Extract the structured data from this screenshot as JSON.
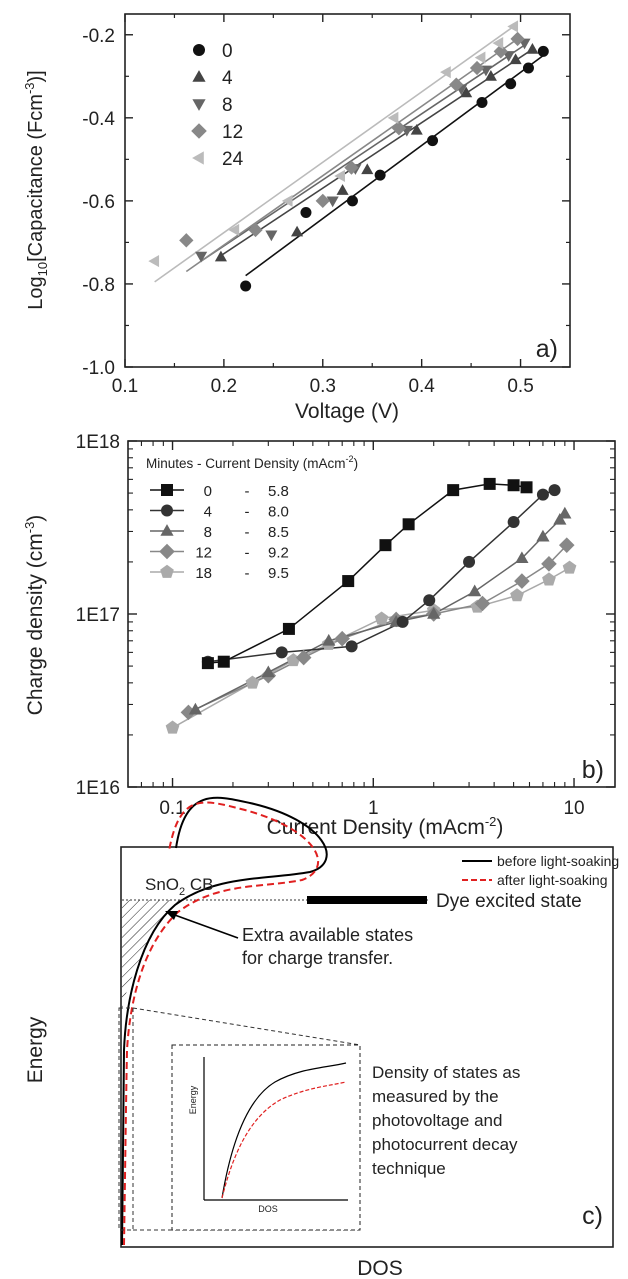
{
  "chart_data": [
    {
      "panel": "a)",
      "type": "scatter",
      "xlabel": "Voltage (V)",
      "ylabel": {
        "pre": "Log",
        "sub": "10",
        "mid": "[Capacitance (Fcm",
        "sup": "-3",
        "post": ")]"
      },
      "xlim": [
        0.1,
        0.55
      ],
      "ylim": [
        -1.0,
        -0.15
      ],
      "xticks": [
        0.1,
        0.2,
        0.3,
        0.4,
        0.5
      ],
      "yticks": [
        -1.0,
        -0.8,
        -0.6,
        -0.4,
        -0.2
      ],
      "xticklabels": [
        "0.1",
        "0.2",
        "0.3",
        "0.4",
        "0.5"
      ],
      "yticklabels": [
        "-1.0",
        "-0.8",
        "-0.6",
        "-0.4",
        "-0.2"
      ],
      "legend_position": "top-left",
      "series": [
        {
          "name": "0",
          "marker": "circle",
          "color": "#111111",
          "points": [
            [
              0.222,
              -0.805
            ],
            [
              0.283,
              -0.628
            ],
            [
              0.33,
              -0.6
            ],
            [
              0.358,
              -0.538
            ],
            [
              0.411,
              -0.455
            ],
            [
              0.461,
              -0.363
            ],
            [
              0.49,
              -0.318
            ],
            [
              0.508,
              -0.28
            ],
            [
              0.523,
              -0.24
            ]
          ],
          "fit": [
            [
              0.222,
              -0.78
            ],
            [
              0.523,
              -0.25
            ]
          ]
        },
        {
          "name": "4",
          "marker": "triangle-up",
          "color": "#444444",
          "points": [
            [
              0.197,
              -0.735
            ],
            [
              0.274,
              -0.675
            ],
            [
              0.32,
              -0.575
            ],
            [
              0.345,
              -0.525
            ],
            [
              0.395,
              -0.43
            ],
            [
              0.445,
              -0.34
            ],
            [
              0.47,
              -0.3
            ],
            [
              0.495,
              -0.26
            ],
            [
              0.512,
              -0.235
            ]
          ],
          "fit": [
            [
              0.195,
              -0.735
            ],
            [
              0.512,
              -0.235
            ]
          ]
        },
        {
          "name": "8",
          "marker": "triangle-down",
          "color": "#666666",
          "points": [
            [
              0.177,
              -0.733
            ],
            [
              0.248,
              -0.682
            ],
            [
              0.31,
              -0.6
            ],
            [
              0.333,
              -0.522
            ],
            [
              0.385,
              -0.43
            ],
            [
              0.44,
              -0.33
            ],
            [
              0.465,
              -0.285
            ],
            [
              0.488,
              -0.25
            ],
            [
              0.504,
              -0.22
            ]
          ],
          "fit": [
            [
              0.177,
              -0.745
            ],
            [
              0.504,
              -0.225
            ]
          ]
        },
        {
          "name": "12",
          "marker": "diamond",
          "color": "#888888",
          "points": [
            [
              0.162,
              -0.695
            ],
            [
              0.232,
              -0.67
            ],
            [
              0.3,
              -0.6
            ],
            [
              0.329,
              -0.52
            ],
            [
              0.377,
              -0.425
            ],
            [
              0.435,
              -0.32
            ],
            [
              0.456,
              -0.28
            ],
            [
              0.48,
              -0.24
            ],
            [
              0.497,
              -0.21
            ]
          ],
          "fit": [
            [
              0.162,
              -0.77
            ],
            [
              0.497,
              -0.21
            ]
          ]
        },
        {
          "name": "24",
          "marker": "triangle-left",
          "color": "#bbbbbb",
          "points": [
            [
              0.13,
              -0.745
            ],
            [
              0.211,
              -0.67
            ],
            [
              0.265,
              -0.6
            ],
            [
              0.318,
              -0.54
            ],
            [
              0.372,
              -0.4
            ],
            [
              0.425,
              -0.29
            ],
            [
              0.46,
              -0.255
            ],
            [
              0.478,
              -0.22
            ],
            [
              0.493,
              -0.18
            ]
          ],
          "fit": [
            [
              0.13,
              -0.795
            ],
            [
              0.493,
              -0.18
            ]
          ]
        }
      ]
    },
    {
      "panel": "b)",
      "type": "line",
      "xscale": "log",
      "yscale": "log",
      "xlabel": {
        "pre": "Current Density (mAcm",
        "sup": "-2",
        "post": ")"
      },
      "ylabel": {
        "pre": "Charge density (cm",
        "sup": "-3",
        "post": ")"
      },
      "xlim": [
        0.06,
        16
      ],
      "ylim": [
        1e+16,
        1e+18
      ],
      "xticklabels": [
        "0.1",
        "1",
        "10"
      ],
      "yticklabels": [
        "1E16",
        "1E17",
        "1E18"
      ],
      "legend_title": {
        "pre": "Minutes - Current Density (mAcm",
        "sup": "-2",
        "post": ")"
      },
      "legend_position": "top-left",
      "series": [
        {
          "minutes": "0",
          "sep": "-",
          "current": "5.8",
          "marker": "square",
          "color": "#111111",
          "points": [
            [
              0.15,
              5.2e+16
            ],
            [
              0.18,
              5.3e+16
            ],
            [
              0.38,
              8.2e+16
            ],
            [
              0.75,
              1.55e+17
            ],
            [
              1.15,
              2.5e+17
            ],
            [
              1.5,
              3.3e+17
            ],
            [
              2.5,
              5.2e+17
            ],
            [
              3.8,
              5.65e+17
            ],
            [
              5.0,
              5.55e+17
            ],
            [
              5.8,
              5.4e+17
            ]
          ]
        },
        {
          "minutes": "4",
          "sep": "-",
          "current": "8.0",
          "marker": "circle",
          "color": "#333333",
          "points": [
            [
              0.15,
              5.3e+16
            ],
            [
              0.35,
              6e+16
            ],
            [
              0.78,
              6.5e+16
            ],
            [
              1.4,
              9e+16
            ],
            [
              1.9,
              1.2e+17
            ],
            [
              3.0,
              2e+17
            ],
            [
              5.0,
              3.4e+17
            ],
            [
              7.0,
              4.9e+17
            ],
            [
              8.0,
              5.2e+17
            ]
          ]
        },
        {
          "minutes": "8",
          "sep": "-",
          "current": "8.5",
          "marker": "triangle-up",
          "color": "#666666",
          "points": [
            [
              0.13,
              2.8e+16
            ],
            [
              0.3,
              4.6e+16
            ],
            [
              0.6,
              7e+16
            ],
            [
              1.3,
              9e+16
            ],
            [
              2.0,
              1e+17
            ],
            [
              3.2,
              1.35e+17
            ],
            [
              5.5,
              2.1e+17
            ],
            [
              7.0,
              2.8e+17
            ],
            [
              8.5,
              3.5e+17
            ],
            [
              9.0,
              3.8e+17
            ]
          ]
        },
        {
          "minutes": "12",
          "sep": "-",
          "current": "9.2",
          "marker": "diamond",
          "color": "#888888",
          "points": [
            [
              0.12,
              2.7e+16
            ],
            [
              0.3,
              4.4e+16
            ],
            [
              0.45,
              5.6e+16
            ],
            [
              0.7,
              7.2e+16
            ],
            [
              1.3,
              9.3e+16
            ],
            [
              2.0,
              1e+17
            ],
            [
              3.5,
              1.15e+17
            ],
            [
              5.5,
              1.55e+17
            ],
            [
              7.5,
              1.95e+17
            ],
            [
              9.2,
              2.5e+17
            ]
          ]
        },
        {
          "minutes": "18",
          "sep": "-",
          "current": "9.5",
          "marker": "pentagon",
          "color": "#aaaaaa",
          "points": [
            [
              0.1,
              2.2e+16
            ],
            [
              0.25,
              4e+16
            ],
            [
              0.4,
              5.4e+16
            ],
            [
              0.6,
              6.7e+16
            ],
            [
              1.1,
              9.4e+16
            ],
            [
              2.0,
              1.05e+17
            ],
            [
              3.3,
              1.1e+17
            ],
            [
              5.2,
              1.28e+17
            ],
            [
              7.5,
              1.58e+17
            ],
            [
              9.5,
              1.85e+17
            ]
          ]
        }
      ]
    },
    {
      "panel": "c)",
      "type": "diagram",
      "ylabel": "Energy",
      "xlabel": "DOS",
      "series": [
        {
          "name": "before light-soaking",
          "color": "#000000",
          "style": "solid"
        },
        {
          "name": "after light-soaking",
          "color": "#e02020",
          "style": "dashed"
        }
      ],
      "annotations": {
        "band": {
          "pre": "SnO",
          "sub": "2",
          "post": " CB"
        },
        "dye": "Dye excited state",
        "extra_line1": "Extra available states",
        "extra_line2": "for charge transfer.",
        "measured": [
          "Density of states as",
          "measured by the",
          "photovoltage and",
          "photocurrent decay",
          "technique"
        ],
        "inset_ylabel": "Energy",
        "inset_xlabel": "DOS"
      }
    }
  ]
}
